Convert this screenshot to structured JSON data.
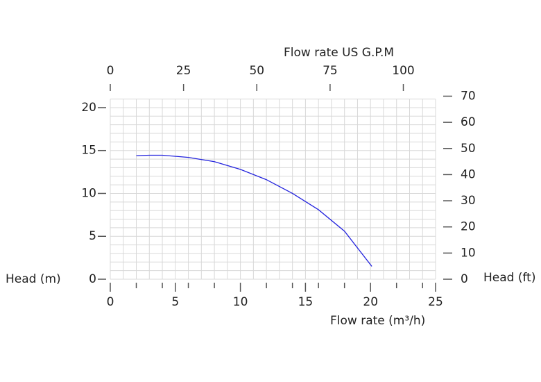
{
  "chart_data": {
    "type": "line",
    "xlabel": "Flow rate  (m³/h)",
    "x2label": "Flow rate US  G.P.M",
    "ylabel": "Head (m)",
    "y2label": "Head (ft)",
    "xlim": [
      0,
      25
    ],
    "xticks": [
      0,
      5,
      10,
      15,
      20,
      25
    ],
    "xminor": [
      2,
      4,
      6,
      8,
      12,
      14,
      16,
      18,
      22,
      24
    ],
    "xgrid": [
      0,
      1,
      2,
      3,
      4,
      5,
      6,
      7,
      8,
      9,
      10,
      11,
      12,
      13,
      14,
      15,
      16,
      17,
      18,
      19,
      20,
      21,
      22,
      23,
      24,
      25
    ],
    "ylim": [
      0,
      21
    ],
    "yticks": [
      0,
      5,
      10,
      15,
      20
    ],
    "ygrid": [
      0,
      1,
      2,
      3,
      4,
      5,
      6,
      7,
      8,
      9,
      10,
      11,
      12,
      13,
      14,
      15,
      16,
      17,
      18,
      19,
      20,
      21
    ],
    "x2lim": [
      0,
      111
    ],
    "x2ticks": [
      0,
      25,
      50,
      75,
      100
    ],
    "y2lim": [
      0,
      68.9
    ],
    "y2ticks": [
      0,
      10,
      20,
      30,
      40,
      50,
      60,
      70
    ],
    "grid": true,
    "series": [
      {
        "name": "Head",
        "color": "#2222dd",
        "x": [
          2,
          3,
          4,
          6,
          8,
          10,
          12,
          14,
          16,
          18,
          20.1
        ],
        "values": [
          14.4,
          14.45,
          14.45,
          14.2,
          13.7,
          12.8,
          11.6,
          10.0,
          8.1,
          5.6,
          1.5
        ]
      }
    ]
  }
}
